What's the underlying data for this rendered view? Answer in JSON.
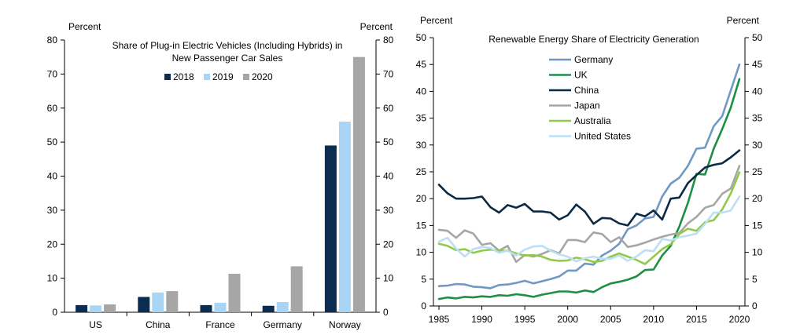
{
  "chart_data": [
    {
      "type": "bar",
      "title_lines": [
        "Share of Plug-in Electric Vehicles (Including Hybrids) in",
        "New Passenger Car Sales"
      ],
      "ylabel_left": "Percent",
      "ylabel_right": "Percent",
      "ylim": [
        0,
        80
      ],
      "yticks": [
        0,
        10,
        20,
        30,
        40,
        50,
        60,
        70,
        80
      ],
      "categories": [
        "US",
        "China",
        "France",
        "Germany",
        "Norway"
      ],
      "series": [
        {
          "name": "2018",
          "color": "#0b2d52",
          "values": [
            2.1,
            4.5,
            2.1,
            1.9,
            49.0
          ]
        },
        {
          "name": "2019",
          "color": "#a8d4f5",
          "values": [
            2.0,
            5.8,
            2.8,
            3.0,
            56.0
          ]
        },
        {
          "name": "2020",
          "color": "#a6a6a6",
          "values": [
            2.3,
            6.2,
            11.3,
            13.5,
            75.0
          ]
        }
      ],
      "legend_position": "top-center"
    },
    {
      "type": "line",
      "title": "Renewable  Energy Share  of Electricity Generation",
      "ylabel_left": "Percent",
      "ylabel_right": "Percent",
      "ylim": [
        0,
        50
      ],
      "yticks": [
        0,
        5,
        10,
        15,
        20,
        25,
        30,
        35,
        40,
        45,
        50
      ],
      "xlim": [
        1985,
        2020
      ],
      "xticks": [
        1985,
        1990,
        1995,
        2000,
        2005,
        2010,
        2015,
        2020
      ],
      "x": [
        1985,
        1986,
        1987,
        1988,
        1989,
        1990,
        1991,
        1992,
        1993,
        1994,
        1995,
        1996,
        1997,
        1998,
        1999,
        2000,
        2001,
        2002,
        2003,
        2004,
        2005,
        2006,
        2007,
        2008,
        2009,
        2010,
        2011,
        2012,
        2013,
        2014,
        2015,
        2016,
        2017,
        2018,
        2019,
        2020
      ],
      "series": [
        {
          "name": "Germany",
          "color": "#7098c4",
          "values": [
            3.7,
            3.8,
            4.1,
            4.0,
            3.6,
            3.5,
            3.3,
            3.9,
            4.0,
            4.3,
            4.7,
            4.2,
            4.6,
            5.0,
            5.5,
            6.6,
            6.6,
            7.9,
            7.7,
            9.4,
            10.3,
            11.6,
            14.3,
            15.0,
            16.3,
            16.6,
            20.4,
            22.8,
            23.9,
            26.1,
            29.3,
            29.5,
            33.5,
            35.4,
            40.2,
            45.0
          ]
        },
        {
          "name": "UK",
          "color": "#1d8f45",
          "values": [
            1.3,
            1.6,
            1.4,
            1.7,
            1.6,
            1.8,
            1.7,
            2.0,
            1.9,
            2.2,
            2.0,
            1.7,
            2.1,
            2.4,
            2.7,
            2.7,
            2.5,
            2.9,
            2.6,
            3.5,
            4.2,
            4.5,
            4.9,
            5.5,
            6.7,
            6.8,
            9.4,
            11.2,
            14.8,
            19.2,
            24.6,
            24.5,
            29.3,
            33.0,
            37.0,
            42.3
          ]
        },
        {
          "name": "China",
          "color": "#0c2a45",
          "values": [
            22.6,
            21.0,
            20.0,
            20.0,
            20.1,
            20.4,
            18.4,
            17.4,
            18.8,
            18.3,
            19.0,
            17.6,
            17.6,
            17.4,
            16.1,
            16.9,
            18.9,
            17.6,
            15.3,
            16.4,
            16.3,
            15.4,
            15.0,
            17.2,
            16.7,
            17.8,
            16.1,
            20.0,
            20.2,
            22.9,
            24.4,
            25.8,
            26.3,
            26.6,
            27.7,
            29.0
          ]
        },
        {
          "name": "Japan",
          "color": "#a6a6a6",
          "values": [
            14.2,
            14.0,
            12.7,
            14.1,
            13.5,
            11.4,
            11.7,
            10.3,
            11.2,
            8.2,
            9.5,
            9.2,
            9.7,
            10.4,
            9.8,
            12.3,
            12.3,
            11.9,
            13.7,
            13.4,
            11.9,
            12.8,
            11.0,
            11.3,
            11.8,
            12.4,
            12.9,
            13.3,
            13.6,
            15.4,
            16.6,
            18.3,
            18.8,
            20.9,
            21.9,
            26.1
          ]
        },
        {
          "name": "Australia",
          "color": "#93c94b",
          "values": [
            11.6,
            11.2,
            10.4,
            10.6,
            9.9,
            10.3,
            10.5,
            10.3,
            10.3,
            9.8,
            9.4,
            9.5,
            9.2,
            8.6,
            8.4,
            8.5,
            9.0,
            8.7,
            8.2,
            8.4,
            9.2,
            9.8,
            9.2,
            8.6,
            7.8,
            9.2,
            10.6,
            11.5,
            13.4,
            14.4,
            14.0,
            15.6,
            16.0,
            18.0,
            21.0,
            24.9
          ]
        },
        {
          "name": "United States",
          "color": "#bcdff5",
          "values": [
            12.0,
            12.7,
            10.7,
            9.2,
            10.6,
            11.0,
            10.8,
            9.9,
            10.3,
            9.4,
            10.5,
            11.1,
            11.2,
            10.3,
            9.6,
            9.2,
            8.3,
            8.9,
            9.2,
            8.8,
            8.8,
            9.4,
            8.4,
            9.2,
            10.4,
            10.2,
            12.5,
            12.2,
            12.8,
            13.1,
            13.5,
            15.3,
            17.4,
            17.4,
            17.8,
            20.4
          ]
        }
      ],
      "legend_position": "top-left"
    }
  ]
}
